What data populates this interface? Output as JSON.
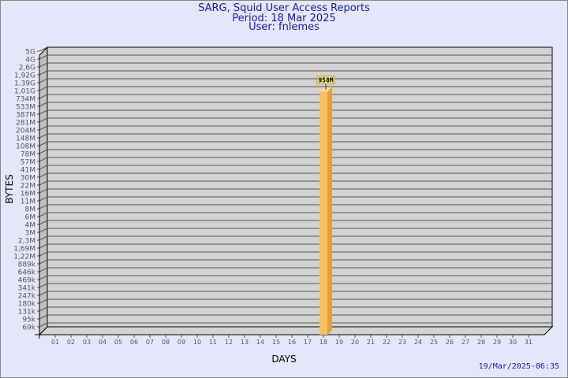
{
  "chart_data": {
    "type": "bar",
    "title": "SARG, Squid User Access Reports",
    "subtitle": [
      "Period: 18 Mar 2025",
      "User: fnlemes"
    ],
    "xlabel": "DAYS",
    "ylabel": "BYTES",
    "y_scale": "log",
    "y_tick_labels": [
      "5G",
      "4G",
      "2,6G",
      "1,92G",
      "1,39G",
      "1,01G",
      "734M",
      "533M",
      "387M",
      "281M",
      "204M",
      "148M",
      "108M",
      "78M",
      "57M",
      "41M",
      "30M",
      "22M",
      "16M",
      "11M",
      "8M",
      "6M",
      "4M",
      "3M",
      "2,3M",
      "1,69M",
      "1,22M",
      "889k",
      "646k",
      "469k",
      "341k",
      "247k",
      "180k",
      "131k",
      "95k",
      "69k"
    ],
    "y_tick_values": [
      5000000000.0,
      4000000000.0,
      2600000000.0,
      1920000000.0,
      1390000000.0,
      1010000000.0,
      734000000.0,
      533000000.0,
      387000000.0,
      281000000.0,
      204000000.0,
      148000000.0,
      108000000.0,
      78000000.0,
      57000000.0,
      41000000.0,
      30000000.0,
      22000000.0,
      16000000.0,
      11000000.0,
      8000000.0,
      6000000.0,
      4000000.0,
      3000000.0,
      2300000.0,
      1690000.0,
      1220000.0,
      889000.0,
      646000.0,
      469000.0,
      341000.0,
      247000.0,
      180000.0,
      131000.0,
      95000.0,
      69000.0
    ],
    "categories": [
      "01",
      "02",
      "03",
      "04",
      "05",
      "06",
      "07",
      "08",
      "09",
      "10",
      "11",
      "12",
      "13",
      "14",
      "15",
      "16",
      "17",
      "18",
      "19",
      "20",
      "21",
      "22",
      "23",
      "24",
      "25",
      "26",
      "27",
      "28",
      "29",
      "30",
      "31"
    ],
    "values": [
      {
        "day": "18",
        "bytes": 958000000,
        "label": "958M"
      }
    ],
    "grid": true,
    "colors": {
      "bar_front": "#f8c060",
      "bar_side": "#e0a040",
      "wall": "#d3d3d3",
      "label_bg": "#f0e68c"
    }
  },
  "footer": {
    "timestamp": "19/Mar/2025-06:35"
  }
}
